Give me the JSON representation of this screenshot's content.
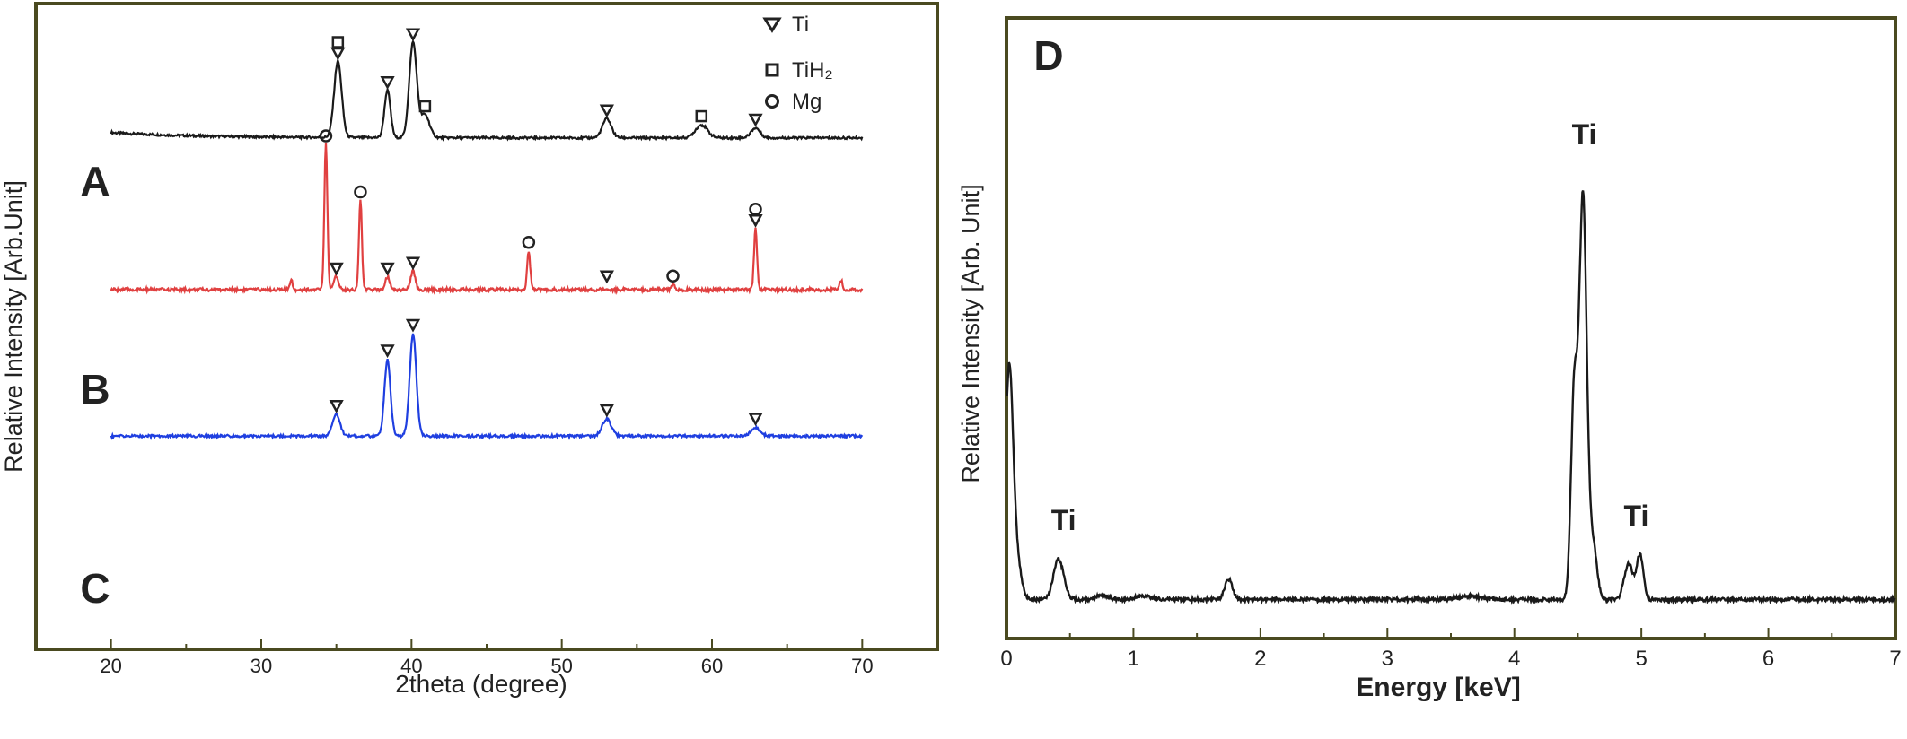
{
  "chart_data": [
    {
      "id": "xrd",
      "type": "line",
      "xlabel": "2theta (degree)",
      "ylabel": "Relative Intensity [Arb.Unit]",
      "xlim": [
        15,
        75
      ],
      "xticks": [
        20,
        30,
        40,
        50,
        60,
        70
      ],
      "colors": {
        "frame": "#4a4a20",
        "A": "#1a1a1a",
        "B": "#e04040",
        "C": "#1f3fe0",
        "marker": "#222222"
      },
      "legend": [
        {
          "symbol": "triangle",
          "label": "Ti"
        },
        {
          "symbol": "square",
          "label": "TiH₂"
        },
        {
          "symbol": "circle",
          "label": "Mg"
        }
      ],
      "series": [
        {
          "name": "A",
          "baseline": 0.05,
          "start_level": 0.12,
          "peaks": [
            [
              35.1,
              1.0,
              0.25
            ],
            [
              38.4,
              0.62,
              0.2
            ],
            [
              40.1,
              1.25,
              0.25
            ],
            [
              40.9,
              0.3,
              0.3
            ],
            [
              53.0,
              0.25,
              0.3
            ],
            [
              59.3,
              0.17,
              0.4
            ],
            [
              62.9,
              0.13,
              0.3
            ]
          ],
          "markers": [
            {
              "x": 35.1,
              "y": 1.0,
              "symbols": [
                "triangle",
                "square"
              ]
            },
            {
              "x": 38.4,
              "y": 0.62,
              "symbols": [
                "triangle"
              ]
            },
            {
              "x": 40.1,
              "y": 1.25,
              "symbols": [
                "triangle"
              ]
            },
            {
              "x": 40.9,
              "y": 0.3,
              "symbols": [
                "square"
              ]
            },
            {
              "x": 53.0,
              "y": 0.25,
              "symbols": [
                "triangle"
              ]
            },
            {
              "x": 59.3,
              "y": 0.17,
              "symbols": [
                "square"
              ]
            },
            {
              "x": 62.9,
              "y": 0.13,
              "symbols": [
                "triangle"
              ]
            }
          ]
        },
        {
          "name": "B",
          "baseline": 0.04,
          "start_level": 0.04,
          "peaks": [
            [
              32.0,
              0.1,
              0.08
            ],
            [
              34.3,
              1.3,
              0.1
            ],
            [
              35.0,
              0.12,
              0.15
            ],
            [
              36.6,
              0.8,
              0.1
            ],
            [
              38.4,
              0.12,
              0.15
            ],
            [
              40.1,
              0.17,
              0.15
            ],
            [
              47.8,
              0.35,
              0.1
            ],
            [
              57.4,
              0.05,
              0.1
            ],
            [
              62.9,
              0.55,
              0.1
            ],
            [
              68.6,
              0.08,
              0.1
            ]
          ],
          "markers": [
            {
              "x": 34.3,
              "y": 1.3,
              "symbols": [
                "circle"
              ]
            },
            {
              "x": 35.0,
              "y": 0.12,
              "symbols": [
                "triangle"
              ]
            },
            {
              "x": 36.6,
              "y": 0.8,
              "symbols": [
                "circle"
              ]
            },
            {
              "x": 38.4,
              "y": 0.12,
              "symbols": [
                "triangle"
              ]
            },
            {
              "x": 40.1,
              "y": 0.17,
              "symbols": [
                "triangle"
              ]
            },
            {
              "x": 47.8,
              "y": 0.35,
              "symbols": [
                "circle"
              ]
            },
            {
              "x": 53.0,
              "y": 0.05,
              "symbols": [
                "triangle"
              ]
            },
            {
              "x": 57.4,
              "y": 0.05,
              "symbols": [
                "circle"
              ]
            },
            {
              "x": 62.9,
              "y": 0.55,
              "symbols": [
                "triangle",
                "circle"
              ]
            }
          ]
        },
        {
          "name": "C",
          "baseline": 0.04,
          "start_level": 0.04,
          "peaks": [
            [
              35.0,
              0.25,
              0.25
            ],
            [
              38.4,
              0.9,
              0.2
            ],
            [
              40.1,
              1.2,
              0.22
            ],
            [
              53.0,
              0.2,
              0.3
            ],
            [
              62.9,
              0.1,
              0.3
            ]
          ],
          "markers": [
            {
              "x": 35.0,
              "y": 0.25,
              "symbols": [
                "triangle"
              ]
            },
            {
              "x": 38.4,
              "y": 0.9,
              "symbols": [
                "triangle"
              ]
            },
            {
              "x": 40.1,
              "y": 1.2,
              "symbols": [
                "triangle"
              ]
            },
            {
              "x": 53.0,
              "y": 0.2,
              "symbols": [
                "triangle"
              ]
            },
            {
              "x": 62.9,
              "y": 0.1,
              "symbols": [
                "triangle"
              ]
            }
          ]
        }
      ]
    },
    {
      "id": "eds",
      "type": "line",
      "panel_label": "D",
      "xlabel": "Energy [keV]",
      "ylabel": "Relative Intensity [Arb. Unit]",
      "xlim": [
        0,
        7
      ],
      "ylim": [
        0,
        1.1
      ],
      "xticks": [
        0,
        1,
        2,
        3,
        4,
        5,
        6,
        7
      ],
      "colors": {
        "frame": "#4a4a20",
        "line": "#1a1a1a"
      },
      "baseline": 0.015,
      "peaks": [
        [
          0.02,
          0.48,
          0.03
        ],
        [
          0.07,
          0.1,
          0.04
        ],
        [
          0.41,
          0.09,
          0.04
        ],
        [
          0.75,
          0.01,
          0.05
        ],
        [
          1.08,
          0.008,
          0.06
        ],
        [
          1.75,
          0.045,
          0.03
        ],
        [
          3.65,
          0.008,
          0.08
        ],
        [
          4.47,
          0.45,
          0.025
        ],
        [
          4.54,
          0.9,
          0.03
        ],
        [
          4.62,
          0.12,
          0.03
        ],
        [
          4.9,
          0.08,
          0.035
        ],
        [
          4.99,
          0.1,
          0.025
        ]
      ],
      "annotations": [
        {
          "text": "Ti",
          "x": 0.45,
          "y": 0.17
        },
        {
          "text": "Ti",
          "x": 4.55,
          "y": 1.03
        },
        {
          "text": "Ti",
          "x": 4.96,
          "y": 0.18
        }
      ]
    }
  ]
}
